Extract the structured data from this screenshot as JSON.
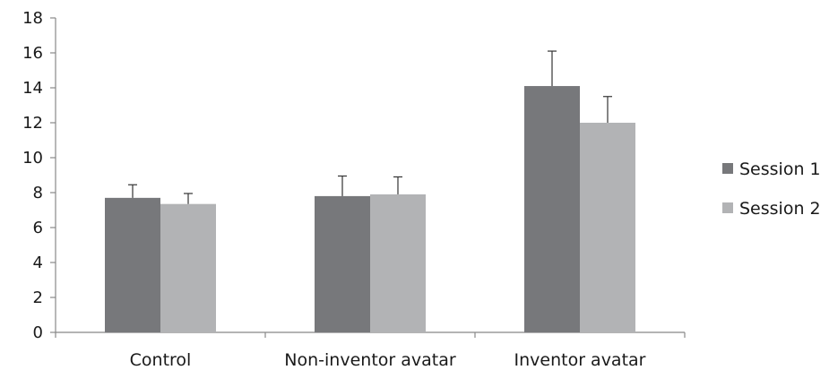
{
  "chart_data": {
    "type": "bar",
    "title": "",
    "xlabel": "",
    "ylabel": "",
    "categories": [
      "Control",
      "Non-inventor avatar",
      "Inventor avatar"
    ],
    "series": [
      {
        "name": "Session 1",
        "values": [
          7.7,
          7.8,
          14.1
        ],
        "error": [
          0.75,
          1.15,
          2.0
        ],
        "color": "#77787b"
      },
      {
        "name": "Session 2",
        "values": [
          7.35,
          7.9,
          12.0
        ],
        "error": [
          0.6,
          1.0,
          1.5
        ],
        "color": "#b2b3b5"
      }
    ],
    "ylim": [
      0,
      18
    ],
    "yticks": [
      "0",
      "2",
      "4",
      "6",
      "8",
      "10",
      "12",
      "14",
      "16",
      "18"
    ],
    "grid": false,
    "legend": "right"
  }
}
